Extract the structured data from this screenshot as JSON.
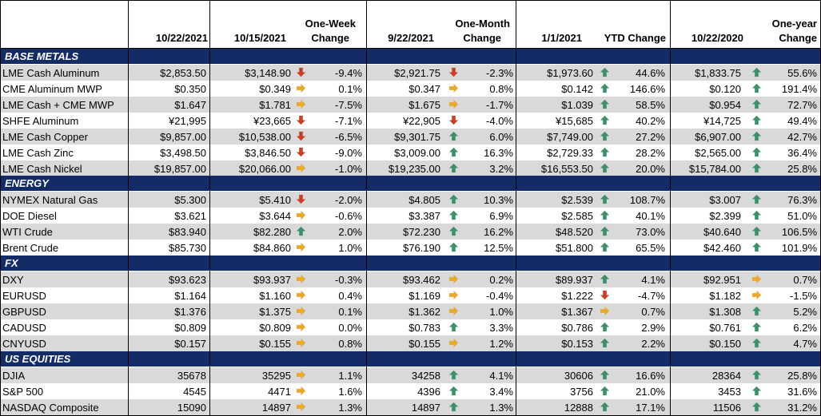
{
  "headers": {
    "c1": "10/22/2021",
    "c2": "10/15/2021",
    "c3_line1": "One-Week",
    "c3_line2": "Change",
    "c4": "9/22/2021",
    "c5_line1": "One-Month",
    "c5_line2": "Change",
    "c6": "1/1/2021",
    "c7": "YTD Change",
    "c8": "10/22/2020",
    "c9_line1": "One-year",
    "c9_line2": "Change"
  },
  "colors": {
    "section_bg": "#142c66",
    "row_gray": "#d9d9d9",
    "arrow_up": "#3f8f6b",
    "arrow_down": "#c8402a",
    "arrow_side": "#e8a92e"
  },
  "sections": [
    {
      "title": "BASE METALS",
      "rows": [
        {
          "name": "LME Cash Aluminum",
          "v1": "$2,853.50",
          "v2": "$3,148.90",
          "a1": "down",
          "wk": "-9.4%",
          "v3": "$2,921.75",
          "a2": "down",
          "mo": "-2.3%",
          "v4": "$1,973.60",
          "a3": "up",
          "ytd": "44.6%",
          "v5": "$1,833.75",
          "a4": "up",
          "yr": "55.6%"
        },
        {
          "name": "CME Aluminum MWP",
          "v1": "$0.350",
          "v2": "$0.349",
          "a1": "side",
          "wk": "0.1%",
          "v3": "$0.347",
          "a2": "side",
          "mo": "0.8%",
          "v4": "$0.142",
          "a3": "up",
          "ytd": "146.6%",
          "v5": "$0.120",
          "a4": "up",
          "yr": "191.4%"
        },
        {
          "name": "LME Cash + CME MWP",
          "v1": "$1.647",
          "v2": "$1.781",
          "a1": "side",
          "wk": "-7.5%",
          "v3": "$1.675",
          "a2": "side",
          "mo": "-1.7%",
          "v4": "$1.039",
          "a3": "up",
          "ytd": "58.5%",
          "v5": "$0.954",
          "a4": "up",
          "yr": "72.7%"
        },
        {
          "name": "SHFE Aluminum",
          "v1": "¥21,995",
          "v2": "¥23,665",
          "a1": "down",
          "wk": "-7.1%",
          "v3": "¥22,905",
          "a2": "down",
          "mo": "-4.0%",
          "v4": "¥15,685",
          "a3": "up",
          "ytd": "40.2%",
          "v5": "¥14,725",
          "a4": "up",
          "yr": "49.4%"
        },
        {
          "name": "LME Cash Copper",
          "v1": "$9,857.00",
          "v2": "$10,538.00",
          "a1": "down",
          "wk": "-6.5%",
          "v3": "$9,301.75",
          "a2": "up",
          "mo": "6.0%",
          "v4": "$7,749.00",
          "a3": "up",
          "ytd": "27.2%",
          "v5": "$6,907.00",
          "a4": "up",
          "yr": "42.7%"
        },
        {
          "name": "LME Cash Zinc",
          "v1": "$3,498.50",
          "v2": "$3,846.50",
          "a1": "down",
          "wk": "-9.0%",
          "v3": "$3,009.00",
          "a2": "up",
          "mo": "16.3%",
          "v4": "$2,729.33",
          "a3": "up",
          "ytd": "28.2%",
          "v5": "$2,565.00",
          "a4": "up",
          "yr": "36.4%"
        },
        {
          "name": "LME Cash Nickel",
          "v1": "$19,857.00",
          "v2": "$20,066.00",
          "a1": "side",
          "wk": "-1.0%",
          "v3": "$19,235.00",
          "a2": "up",
          "mo": "3.2%",
          "v4": "$16,553.50",
          "a3": "up",
          "ytd": "20.0%",
          "v5": "$15,784.00",
          "a4": "up",
          "yr": "25.8%"
        }
      ]
    },
    {
      "title": "ENERGY",
      "rows": [
        {
          "name": "NYMEX Natural Gas",
          "v1": "$5.300",
          "v2": "$5.410",
          "a1": "down",
          "wk": "-2.0%",
          "v3": "$4.805",
          "a2": "up",
          "mo": "10.3%",
          "v4": "$2.539",
          "a3": "up",
          "ytd": "108.7%",
          "v5": "$3.007",
          "a4": "up",
          "yr": "76.3%"
        },
        {
          "name": "DOE Diesel",
          "v1": "$3.621",
          "v2": "$3.644",
          "a1": "side",
          "wk": "-0.6%",
          "v3": "$3.387",
          "a2": "up",
          "mo": "6.9%",
          "v4": "$2.585",
          "a3": "up",
          "ytd": "40.1%",
          "v5": "$2.399",
          "a4": "up",
          "yr": "51.0%"
        },
        {
          "name": "WTI Crude",
          "v1": "$83.940",
          "v2": "$82.280",
          "a1": "up",
          "wk": "2.0%",
          "v3": "$72.230",
          "a2": "up",
          "mo": "16.2%",
          "v4": "$48.520",
          "a3": "up",
          "ytd": "73.0%",
          "v5": "$40.640",
          "a4": "up",
          "yr": "106.5%"
        },
        {
          "name": "Brent Crude",
          "v1": "$85.730",
          "v2": "$84.860",
          "a1": "side",
          "wk": "1.0%",
          "v3": "$76.190",
          "a2": "up",
          "mo": "12.5%",
          "v4": "$51.800",
          "a3": "up",
          "ytd": "65.5%",
          "v5": "$42.460",
          "a4": "up",
          "yr": "101.9%"
        }
      ]
    },
    {
      "title": "FX",
      "rows": [
        {
          "name": "DXY",
          "v1": "$93.623",
          "v2": "$93.937",
          "a1": "side",
          "wk": "-0.3%",
          "v3": "$93.462",
          "a2": "side",
          "mo": "0.2%",
          "v4": "$89.937",
          "a3": "up",
          "ytd": "4.1%",
          "v5": "$92.951",
          "a4": "side",
          "yr": "0.7%"
        },
        {
          "name": "EURUSD",
          "v1": "$1.164",
          "v2": "$1.160",
          "a1": "side",
          "wk": "0.4%",
          "v3": "$1.169",
          "a2": "side",
          "mo": "-0.4%",
          "v4": "$1.222",
          "a3": "down",
          "ytd": "-4.7%",
          "v5": "$1.182",
          "a4": "side",
          "yr": "-1.5%"
        },
        {
          "name": "GBPUSD",
          "v1": "$1.376",
          "v2": "$1.375",
          "a1": "side",
          "wk": "0.1%",
          "v3": "$1.362",
          "a2": "side",
          "mo": "1.0%",
          "v4": "$1.367",
          "a3": "side",
          "ytd": "0.7%",
          "v5": "$1.308",
          "a4": "up",
          "yr": "5.2%"
        },
        {
          "name": "CADUSD",
          "v1": "$0.809",
          "v2": "$0.809",
          "a1": "side",
          "wk": "0.0%",
          "v3": "$0.783",
          "a2": "up",
          "mo": "3.3%",
          "v4": "$0.786",
          "a3": "up",
          "ytd": "2.9%",
          "v5": "$0.761",
          "a4": "up",
          "yr": "6.2%"
        },
        {
          "name": "CNYUSD",
          "v1": "$0.157",
          "v2": "$0.155",
          "a1": "side",
          "wk": "0.8%",
          "v3": "$0.155",
          "a2": "side",
          "mo": "1.2%",
          "v4": "$0.153",
          "a3": "up",
          "ytd": "2.2%",
          "v5": "$0.150",
          "a4": "up",
          "yr": "4.7%"
        }
      ]
    },
    {
      "title": "US EQUITIES",
      "rows": [
        {
          "name": "DJIA",
          "v1": "35678",
          "v2": "35295",
          "a1": "side",
          "wk": "1.1%",
          "v3": "34258",
          "a2": "up",
          "mo": "4.1%",
          "v4": "30606",
          "a3": "up",
          "ytd": "16.6%",
          "v5": "28364",
          "a4": "up",
          "yr": "25.8%"
        },
        {
          "name": "S&P 500",
          "v1": "4545",
          "v2": "4471",
          "a1": "side",
          "wk": "1.6%",
          "v3": "4396",
          "a2": "up",
          "mo": "3.4%",
          "v4": "3756",
          "a3": "up",
          "ytd": "21.0%",
          "v5": "3453",
          "a4": "up",
          "yr": "31.6%"
        },
        {
          "name": "NASDAQ Composite",
          "v1": "15090",
          "v2": "14897",
          "a1": "side",
          "wk": "1.3%",
          "v3": "14897",
          "a2": "up",
          "mo": "1.3%",
          "v4": "12888",
          "a3": "up",
          "ytd": "17.1%",
          "v5": "11506",
          "a4": "up",
          "yr": "31.2%"
        }
      ]
    }
  ]
}
